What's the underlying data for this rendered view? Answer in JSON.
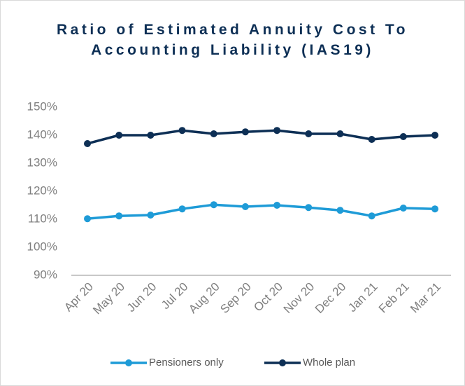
{
  "chart_data": {
    "type": "line",
    "title": "Ratio of Estimated Annuity Cost To Accounting Liability (IAS19)",
    "categories": [
      "Apr 20",
      "May 20",
      "Jun 20",
      "Jul 20",
      "Aug 20",
      "Sep 20",
      "Oct 20",
      "Nov 20",
      "Dec 20",
      "Jan 21",
      "Feb 21",
      "Mar 21"
    ],
    "series": [
      {
        "name": "Pensioners only",
        "color": "#1e9bd7",
        "values": [
          110.2,
          111.2,
          111.5,
          113.7,
          115.2,
          114.5,
          115,
          114.2,
          113.2,
          111.2,
          114,
          113.7
        ]
      },
      {
        "name": "Whole plan",
        "color": "#0d2f55",
        "values": [
          137,
          140,
          140,
          141.7,
          140.5,
          141.2,
          141.7,
          140.5,
          140.5,
          138.5,
          139.5,
          140
        ]
      }
    ],
    "ylim": [
      90,
      150
    ],
    "yticks": [
      {
        "value": 90,
        "label": "90%"
      },
      {
        "value": 100,
        "label": "100%"
      },
      {
        "value": 110,
        "label": "110%"
      },
      {
        "value": 120,
        "label": "120%"
      },
      {
        "value": 130,
        "label": "130%"
      },
      {
        "value": 140,
        "label": "140%"
      },
      {
        "value": 150,
        "label": "150%"
      }
    ],
    "grid": false,
    "legend": "bottom"
  }
}
